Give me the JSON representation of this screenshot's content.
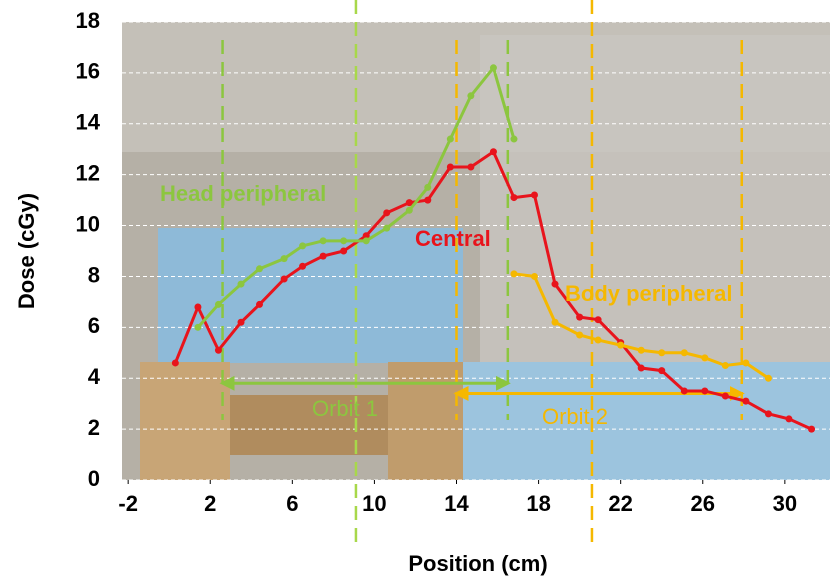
{
  "chart_data": {
    "type": "line",
    "x_label": "Position (cm)",
    "y_label": "Dose (cGy)",
    "xlim": [
      -2.3,
      32.2
    ],
    "xticks": [
      -2,
      2,
      6,
      10,
      14,
      18,
      22,
      26,
      30
    ],
    "ylim": [
      0,
      18
    ],
    "yticks": [
      0,
      2,
      4,
      6,
      8,
      10,
      12,
      14,
      16,
      18
    ],
    "grid": true,
    "series": [
      {
        "name": "Central",
        "color": "#e8141c",
        "x": [
          0.3,
          1.4,
          2.4,
          3.5,
          4.4,
          5.6,
          6.5,
          7.5,
          8.5,
          9.6,
          10.6,
          11.7,
          12.6,
          13.7,
          14.7,
          15.8,
          16.8,
          17.8,
          18.8,
          20.0,
          20.9,
          22.0,
          23.0,
          24.0,
          25.1,
          26.1,
          27.1,
          28.1,
          29.2,
          30.2,
          31.3
        ],
        "values": [
          4.6,
          6.8,
          5.1,
          6.2,
          6.9,
          7.9,
          8.4,
          8.8,
          9.0,
          9.6,
          10.5,
          10.9,
          11.0,
          12.3,
          12.3,
          12.9,
          11.1,
          11.2,
          7.7,
          6.4,
          6.3,
          5.4,
          4.4,
          4.3,
          3.5,
          3.5,
          3.3,
          3.1,
          2.6,
          2.4,
          2.0
        ]
      },
      {
        "name": "Head peripheral",
        "color": "#8cc63f",
        "x": [
          1.4,
          2.4,
          3.5,
          4.4,
          5.6,
          6.5,
          7.5,
          8.5,
          9.6,
          10.6,
          11.7,
          12.6,
          13.7,
          14.7,
          15.8,
          16.8
        ],
        "values": [
          6.0,
          6.9,
          7.7,
          8.3,
          8.7,
          9.2,
          9.4,
          9.4,
          9.4,
          9.9,
          10.6,
          11.5,
          13.4,
          15.1,
          16.2,
          13.4
        ]
      },
      {
        "name": "Body peripheral",
        "color": "#f5b800",
        "x": [
          16.8,
          17.8,
          18.8,
          20.0,
          20.9,
          22.0,
          23.0,
          24.0,
          25.1,
          26.1,
          27.1,
          28.1,
          29.2
        ],
        "values": [
          8.1,
          8.0,
          6.2,
          5.7,
          5.5,
          5.3,
          5.1,
          5.0,
          5.0,
          4.8,
          4.5,
          4.6,
          4.0
        ]
      }
    ],
    "vlines": [
      {
        "x": 2.6,
        "color": "#8cc63f"
      },
      {
        "x": 9.1,
        "color": "#a8d84a"
      },
      {
        "x": 16.5,
        "color": "#8cc63f"
      },
      {
        "x": 14.0,
        "color": "#f5b800"
      },
      {
        "x": 20.6,
        "color": "#f5b800"
      },
      {
        "x": 27.9,
        "color": "#f5b800"
      }
    ],
    "orbits": [
      {
        "label": "Orbit 1",
        "from": 2.6,
        "to": 16.5,
        "y": 3.8,
        "color": "#8cc63f"
      },
      {
        "label": "Orbit 2",
        "from": 14.0,
        "to": 27.9,
        "y": 3.4,
        "color": "#f5b800"
      }
    ]
  }
}
